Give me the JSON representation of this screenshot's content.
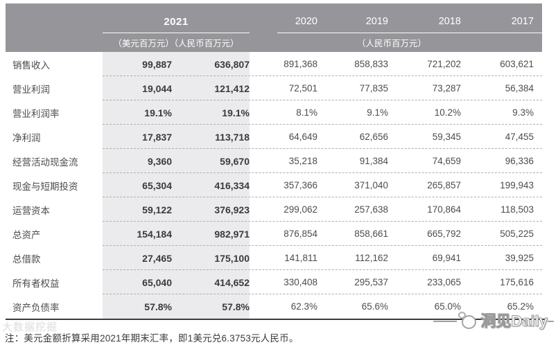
{
  "colors": {
    "header_bg": "#96969a",
    "highlight_bg": "#ebebed",
    "text_dark": "#3a3a3c",
    "text_medium": "#4c4c4e",
    "border_dark": "#3b3b3d",
    "dash_line": "#aeaeae",
    "header_text": "#ffffff"
  },
  "table": {
    "header": {
      "group_2021": "2021",
      "unit_2021": "（美元百万元）（人民币百万元）",
      "years": [
        "2020",
        "2019",
        "2018",
        "2017"
      ],
      "unit_years": "（人民币百万元）"
    },
    "rows": [
      {
        "label": "销售收入",
        "usd": "99,887",
        "rmb": "636,807",
        "y2020": "891,368",
        "y2019": "858,833",
        "y2018": "721,202",
        "y2017": "603,621"
      },
      {
        "label": "营业利润",
        "usd": "19,044",
        "rmb": "121,412",
        "y2020": "72,501",
        "y2019": "77,835",
        "y2018": "73,287",
        "y2017": "56,384"
      },
      {
        "label": "营业利润率",
        "usd": "19.1%",
        "rmb": "19.1%",
        "y2020": "8.1%",
        "y2019": "9.1%",
        "y2018": "10.2%",
        "y2017": "9.3%"
      },
      {
        "label": "净利润",
        "usd": "17,837",
        "rmb": "113,718",
        "y2020": "64,649",
        "y2019": "62,656",
        "y2018": "59,345",
        "y2017": "47,455"
      },
      {
        "label": "经营活动现金流",
        "usd": "9,360",
        "rmb": "59,670",
        "y2020": "35,218",
        "y2019": "91,384",
        "y2018": "74,659",
        "y2017": "96,336"
      },
      {
        "label": "现金与短期投资",
        "usd": "65,304",
        "rmb": "416,334",
        "y2020": "357,366",
        "y2019": "371,040",
        "y2018": "265,857",
        "y2017": "199,943"
      },
      {
        "label": "运营资本",
        "usd": "59,122",
        "rmb": "376,923",
        "y2020": "299,062",
        "y2019": "257,638",
        "y2018": "170,864",
        "y2017": "118,503"
      },
      {
        "label": "总资产",
        "usd": "154,184",
        "rmb": "982,971",
        "y2020": "876,854",
        "y2019": "858,661",
        "y2018": "665,792",
        "y2017": "505,225"
      },
      {
        "label": "总借款",
        "usd": "27,465",
        "rmb": "175,100",
        "y2020": "141,811",
        "y2019": "112,162",
        "y2018": "69,941",
        "y2017": "39,925"
      },
      {
        "label": "所有者权益",
        "usd": "65,040",
        "rmb": "414,652",
        "y2020": "330,408",
        "y2019": "295,537",
        "y2018": "233,065",
        "y2017": "175,616"
      },
      {
        "label": "资产负债率",
        "usd": "57.8%",
        "rmb": "57.8%",
        "y2020": "62.3%",
        "y2019": "65.6%",
        "y2018": "65.0%",
        "y2017": "65.2%"
      }
    ]
  },
  "footnote": "注：美元金额折算采用2021年期末汇率，即1美元兑6.3753元人民币。",
  "watermarks": {
    "left_faint": "大数据挖掘",
    "right": "洞见Daily"
  }
}
